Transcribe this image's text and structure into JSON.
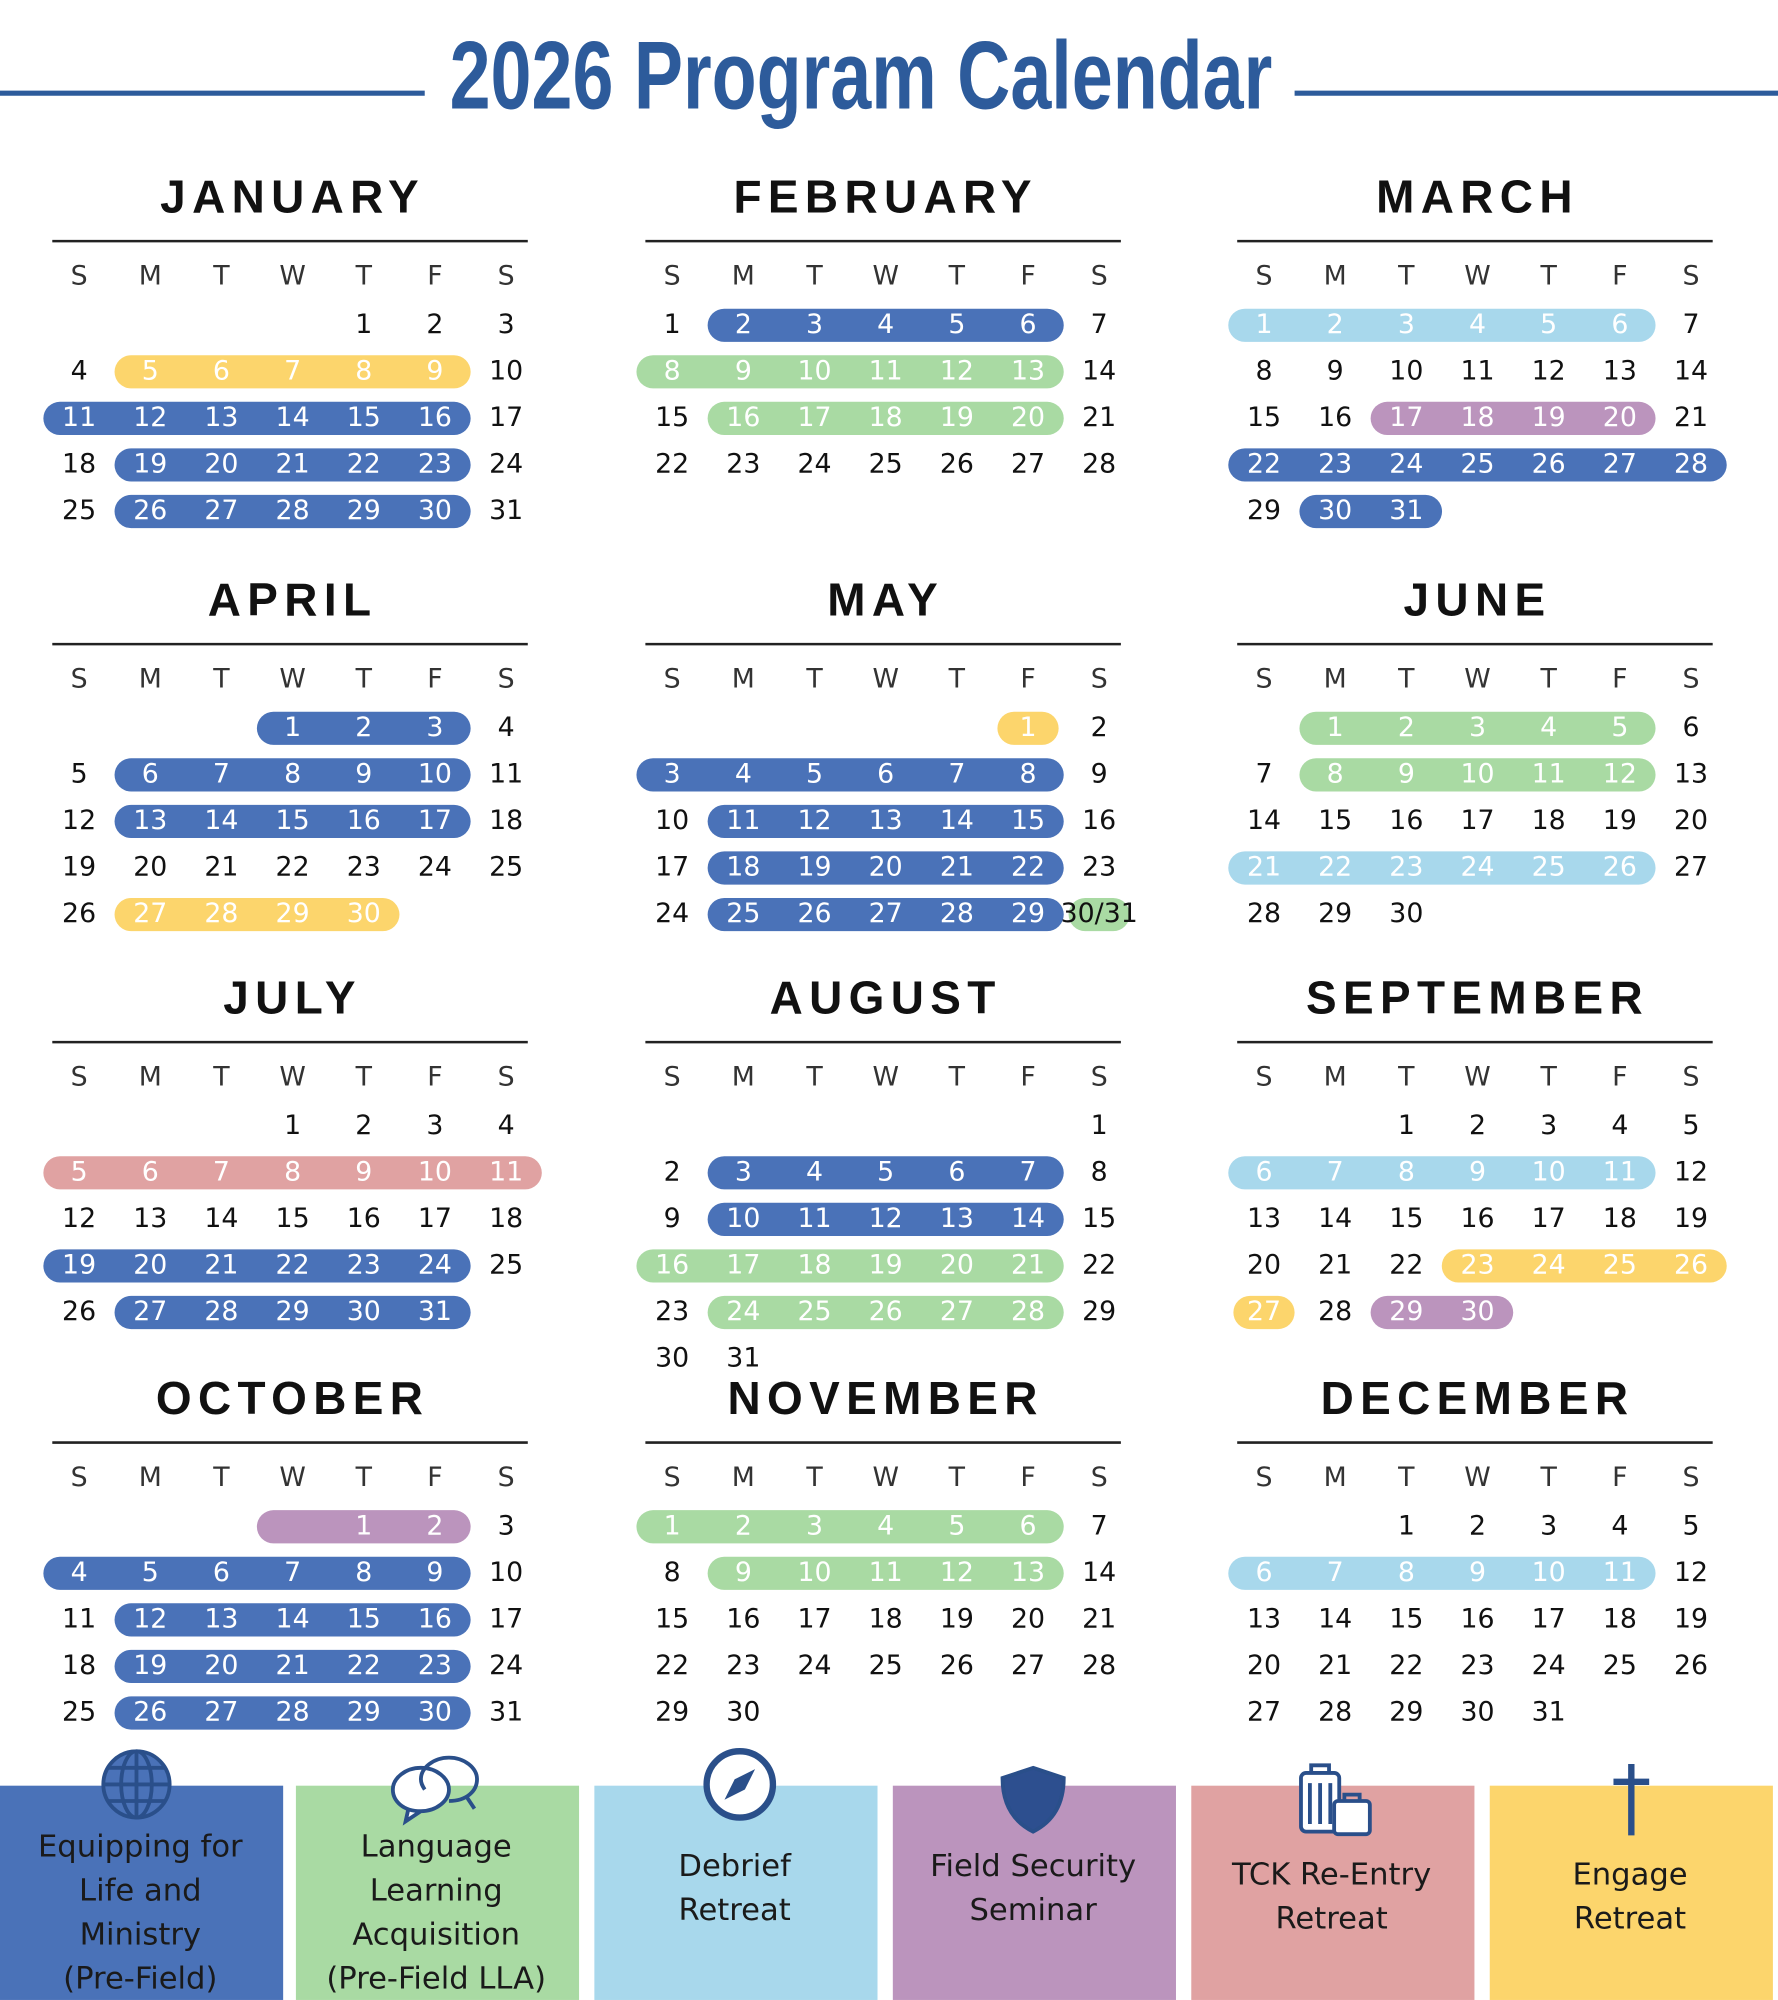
{
  "title": "2026 Program Calendar",
  "weekdays": [
    "S",
    "M",
    "T",
    "W",
    "T",
    "F",
    "S"
  ],
  "legend": [
    {
      "lines": [
        "Equipping for",
        "Life and",
        "Ministry",
        "(Pre-Field)"
      ],
      "color": "#4a72b8"
    },
    {
      "lines": [
        "Language",
        "Learning",
        "Acquisition",
        "(Pre-Field LLA)"
      ],
      "color": "#a9daa3"
    },
    {
      "lines": [
        "Debrief",
        "Retreat"
      ],
      "color": "#a8d8ec"
    },
    {
      "lines": [
        "Field Security",
        "Seminar"
      ],
      "color": "#bb94bd"
    },
    {
      "lines": [
        "TCK Re-Entry",
        "Retreat"
      ],
      "color": "#e0a2a2"
    },
    {
      "lines": [
        "Engage",
        "Retreat"
      ],
      "color": "#fcd56c"
    }
  ],
  "months": [
    {
      "name": "JANUARY",
      "weeks": [
        [
          null,
          null,
          null,
          null,
          1,
          2,
          3
        ],
        [
          4,
          5,
          6,
          7,
          8,
          9,
          10
        ],
        [
          11,
          12,
          13,
          14,
          15,
          16,
          17
        ],
        [
          18,
          19,
          20,
          21,
          22,
          23,
          24
        ],
        [
          25,
          26,
          27,
          28,
          29,
          30,
          31
        ]
      ],
      "bands": [
        {
          "week": 1,
          "start": 1,
          "end": 5,
          "program": 5
        },
        {
          "week": 2,
          "start": 0,
          "end": 5,
          "program": 0
        },
        {
          "week": 3,
          "start": 1,
          "end": 5,
          "program": 0
        },
        {
          "week": 4,
          "start": 1,
          "end": 5,
          "program": 0
        }
      ]
    },
    {
      "name": "FEBRUARY",
      "weeks": [
        [
          1,
          2,
          3,
          4,
          5,
          6,
          7
        ],
        [
          8,
          9,
          10,
          11,
          12,
          13,
          14
        ],
        [
          15,
          16,
          17,
          18,
          19,
          20,
          21
        ],
        [
          22,
          23,
          24,
          25,
          26,
          27,
          28
        ]
      ],
      "bands": [
        {
          "week": 0,
          "start": 1,
          "end": 5,
          "program": 0
        },
        {
          "week": 1,
          "start": 0,
          "end": 5,
          "program": 1
        },
        {
          "week": 2,
          "start": 1,
          "end": 5,
          "program": 1
        }
      ]
    },
    {
      "name": "MARCH",
      "weeks": [
        [
          1,
          2,
          3,
          4,
          5,
          6,
          7
        ],
        [
          8,
          9,
          10,
          11,
          12,
          13,
          14
        ],
        [
          15,
          16,
          17,
          18,
          19,
          20,
          21
        ],
        [
          22,
          23,
          24,
          25,
          26,
          27,
          28
        ],
        [
          29,
          30,
          31,
          null,
          null,
          null,
          null
        ]
      ],
      "bands": [
        {
          "week": 0,
          "start": 0,
          "end": 5,
          "program": 2
        },
        {
          "week": 2,
          "start": 2,
          "end": 5,
          "program": 3
        },
        {
          "week": 3,
          "start": 0,
          "end": 6,
          "program": 0
        },
        {
          "week": 4,
          "start": 1,
          "end": 2,
          "program": 0
        }
      ]
    },
    {
      "name": "APRIL",
      "weeks": [
        [
          null,
          null,
          null,
          1,
          2,
          3,
          4
        ],
        [
          5,
          6,
          7,
          8,
          9,
          10,
          11
        ],
        [
          12,
          13,
          14,
          15,
          16,
          17,
          18
        ],
        [
          19,
          20,
          21,
          22,
          23,
          24,
          25
        ],
        [
          26,
          27,
          28,
          29,
          30,
          null,
          null
        ]
      ],
      "bands": [
        {
          "week": 0,
          "start": 3,
          "end": 5,
          "program": 0
        },
        {
          "week": 1,
          "start": 1,
          "end": 5,
          "program": 0
        },
        {
          "week": 2,
          "start": 1,
          "end": 5,
          "program": 0
        },
        {
          "week": 4,
          "start": 1,
          "end": 4,
          "program": 5
        }
      ]
    },
    {
      "name": "MAY",
      "weeks": [
        [
          null,
          null,
          null,
          null,
          null,
          1,
          2
        ],
        [
          3,
          4,
          5,
          6,
          7,
          8,
          9
        ],
        [
          10,
          11,
          12,
          13,
          14,
          15,
          16
        ],
        [
          17,
          18,
          19,
          20,
          21,
          22,
          23
        ],
        [
          24,
          25,
          26,
          27,
          28,
          29,
          "30/31"
        ]
      ],
      "bands": [
        {
          "week": 0,
          "start": 5,
          "end": 5,
          "program": 5
        },
        {
          "week": 1,
          "start": 0,
          "end": 5,
          "program": 0
        },
        {
          "week": 2,
          "start": 1,
          "end": 5,
          "program": 0
        },
        {
          "week": 3,
          "start": 1,
          "end": 5,
          "program": 0
        },
        {
          "week": 4,
          "start": 1,
          "end": 5,
          "program": 0
        },
        {
          "week": 4,
          "start": 6,
          "end": 6,
          "program": 1
        }
      ]
    },
    {
      "name": "JUNE",
      "weeks": [
        [
          null,
          1,
          2,
          3,
          4,
          5,
          6
        ],
        [
          7,
          8,
          9,
          10,
          11,
          12,
          13
        ],
        [
          14,
          15,
          16,
          17,
          18,
          19,
          20
        ],
        [
          21,
          22,
          23,
          24,
          25,
          26,
          27
        ],
        [
          28,
          29,
          30,
          null,
          null,
          null,
          null
        ]
      ],
      "bands": [
        {
          "week": 0,
          "start": 1,
          "end": 5,
          "program": 1
        },
        {
          "week": 1,
          "start": 1,
          "end": 5,
          "program": 1
        },
        {
          "week": 3,
          "start": 0,
          "end": 5,
          "program": 2
        }
      ]
    },
    {
      "name": "JULY",
      "weeks": [
        [
          null,
          null,
          null,
          1,
          2,
          3,
          4
        ],
        [
          5,
          6,
          7,
          8,
          9,
          10,
          11
        ],
        [
          12,
          13,
          14,
          15,
          16,
          17,
          18
        ],
        [
          19,
          20,
          21,
          22,
          23,
          24,
          25
        ],
        [
          26,
          27,
          28,
          29,
          30,
          31,
          null
        ]
      ],
      "bands": [
        {
          "week": 1,
          "start": 0,
          "end": 6,
          "program": 4
        },
        {
          "week": 3,
          "start": 0,
          "end": 5,
          "program": 0
        },
        {
          "week": 4,
          "start": 1,
          "end": 5,
          "program": 0
        }
      ]
    },
    {
      "name": "AUGUST",
      "weeks": [
        [
          null,
          null,
          null,
          null,
          null,
          null,
          1
        ],
        [
          2,
          3,
          4,
          5,
          6,
          7,
          8
        ],
        [
          9,
          10,
          11,
          12,
          13,
          14,
          15
        ],
        [
          16,
          17,
          18,
          19,
          20,
          21,
          22
        ],
        [
          23,
          24,
          25,
          26,
          27,
          28,
          29
        ],
        [
          30,
          31,
          null,
          null,
          null,
          null,
          null
        ]
      ],
      "bands": [
        {
          "week": 1,
          "start": 1,
          "end": 5,
          "program": 0
        },
        {
          "week": 2,
          "start": 1,
          "end": 5,
          "program": 0
        },
        {
          "week": 3,
          "start": 0,
          "end": 5,
          "program": 1
        },
        {
          "week": 4,
          "start": 1,
          "end": 5,
          "program": 1
        }
      ]
    },
    {
      "name": "SEPTEMBER",
      "weeks": [
        [
          null,
          null,
          1,
          2,
          3,
          4,
          5
        ],
        [
          6,
          7,
          8,
          9,
          10,
          11,
          12
        ],
        [
          13,
          14,
          15,
          16,
          17,
          18,
          19
        ],
        [
          20,
          21,
          22,
          23,
          24,
          25,
          26
        ],
        [
          27,
          28,
          29,
          30,
          null,
          null,
          null
        ]
      ],
      "bands": [
        {
          "week": 1,
          "start": 0,
          "end": 5,
          "program": 2
        },
        {
          "week": 3,
          "start": 3,
          "end": 6,
          "program": 5
        },
        {
          "week": 4,
          "start": 0,
          "end": 0,
          "program": 5
        },
        {
          "week": 4,
          "start": 2,
          "end": 3,
          "program": 3
        }
      ]
    },
    {
      "name": "OCTOBER",
      "weeks": [
        [
          null,
          null,
          null,
          null,
          1,
          2,
          3
        ],
        [
          4,
          5,
          6,
          7,
          8,
          9,
          10
        ],
        [
          11,
          12,
          13,
          14,
          15,
          16,
          17
        ],
        [
          18,
          19,
          20,
          21,
          22,
          23,
          24
        ],
        [
          25,
          26,
          27,
          28,
          29,
          30,
          31
        ]
      ],
      "bands": [
        {
          "week": 0,
          "start": 3,
          "end": 5,
          "program": 3
        },
        {
          "week": 1,
          "start": 0,
          "end": 5,
          "program": 0
        },
        {
          "week": 2,
          "start": 1,
          "end": 5,
          "program": 0
        },
        {
          "week": 3,
          "start": 1,
          "end": 5,
          "program": 0
        },
        {
          "week": 4,
          "start": 1,
          "end": 5,
          "program": 0
        }
      ]
    },
    {
      "name": "NOVEMBER",
      "weeks": [
        [
          1,
          2,
          3,
          4,
          5,
          6,
          7
        ],
        [
          8,
          9,
          10,
          11,
          12,
          13,
          14
        ],
        [
          15,
          16,
          17,
          18,
          19,
          20,
          21
        ],
        [
          22,
          23,
          24,
          25,
          26,
          27,
          28
        ],
        [
          29,
          30,
          null,
          null,
          null,
          null,
          null
        ]
      ],
      "bands": [
        {
          "week": 0,
          "start": 0,
          "end": 5,
          "program": 1
        },
        {
          "week": 1,
          "start": 1,
          "end": 5,
          "program": 1
        }
      ]
    },
    {
      "name": "DECEMBER",
      "weeks": [
        [
          null,
          null,
          1,
          2,
          3,
          4,
          5
        ],
        [
          6,
          7,
          8,
          9,
          10,
          11,
          12
        ],
        [
          13,
          14,
          15,
          16,
          17,
          18,
          19
        ],
        [
          20,
          21,
          22,
          23,
          24,
          25,
          26
        ],
        [
          27,
          28,
          29,
          30,
          31,
          null,
          null
        ]
      ],
      "bands": [
        {
          "week": 1,
          "start": 0,
          "end": 5,
          "program": 2
        }
      ]
    }
  ]
}
